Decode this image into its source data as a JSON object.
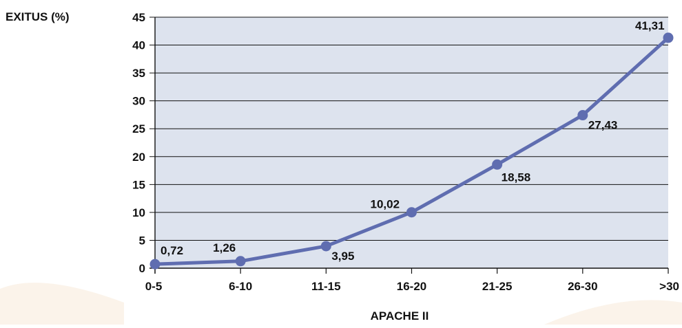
{
  "chart_data": {
    "type": "line",
    "ylabel": "EXITUS (%)",
    "xlabel": "APACHE II",
    "categories": [
      "0-5",
      "6-10",
      "11-15",
      "16-20",
      "21-25",
      "26-30",
      ">30"
    ],
    "values": [
      0.72,
      1.26,
      3.95,
      10.02,
      18.58,
      27.43,
      41.31
    ],
    "value_labels": [
      "0,72",
      "1,26",
      "3,95",
      "10,02",
      "18,58",
      "27,43",
      "41,31"
    ],
    "ylim": [
      0,
      45
    ],
    "yticks": [
      "0",
      "5",
      "10",
      "15",
      "20",
      "25",
      "30",
      "35",
      "40",
      "45"
    ],
    "grid": true,
    "legend": "none"
  },
  "colors": {
    "plot_background": "#dde3ee",
    "series": "#5f6db0",
    "grid": "#111111",
    "decor_blob": "#fbf3ea"
  }
}
